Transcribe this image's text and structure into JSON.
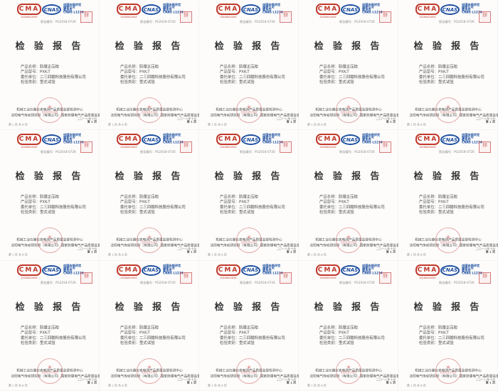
{
  "grid": {
    "rows": 3,
    "cols": 5,
    "count": 15
  },
  "certificate": {
    "cma": {
      "label": "CMA",
      "sub": "2018002209Z"
    },
    "cnas": {
      "label": "CNAS",
      "lines": [
        "中国合格评定",
        "国家认可",
        "委员会",
        "CNAS L1234"
      ]
    },
    "report_no": "报告编号：PG2018-0726",
    "control_stamp": {
      "lines": [
        "受控",
        "文件"
      ]
    },
    "title": "检 验 报 告",
    "fields": [
      {
        "label": "产品名称：",
        "value": "防爆正压柜"
      },
      {
        "label": "产品型号：",
        "value": "PXK-T"
      },
      {
        "label": "委托单位：",
        "value": "二三四翰科技股份有限公司"
      },
      {
        "label": "检验类别：",
        "value": "型式试验"
      }
    ],
    "footer_lines": [
      "机械工业仪器仪表电测产品质量监督检测中心",
      "沈阳电气传动研究所（有限公司）国家防爆电气产品质量监督检验中心"
    ],
    "seal": {
      "star": "★",
      "text": "检验检测专用章"
    },
    "bottom_left": "第 1 页 共 6 页",
    "bottom_right": [
      "二〇一八年十月",
      "第 1 页"
    ],
    "colors": {
      "cma_red": "#c0392b",
      "cnas_blue": "#1d4fa0",
      "seal_red": "#cc5555"
    }
  }
}
